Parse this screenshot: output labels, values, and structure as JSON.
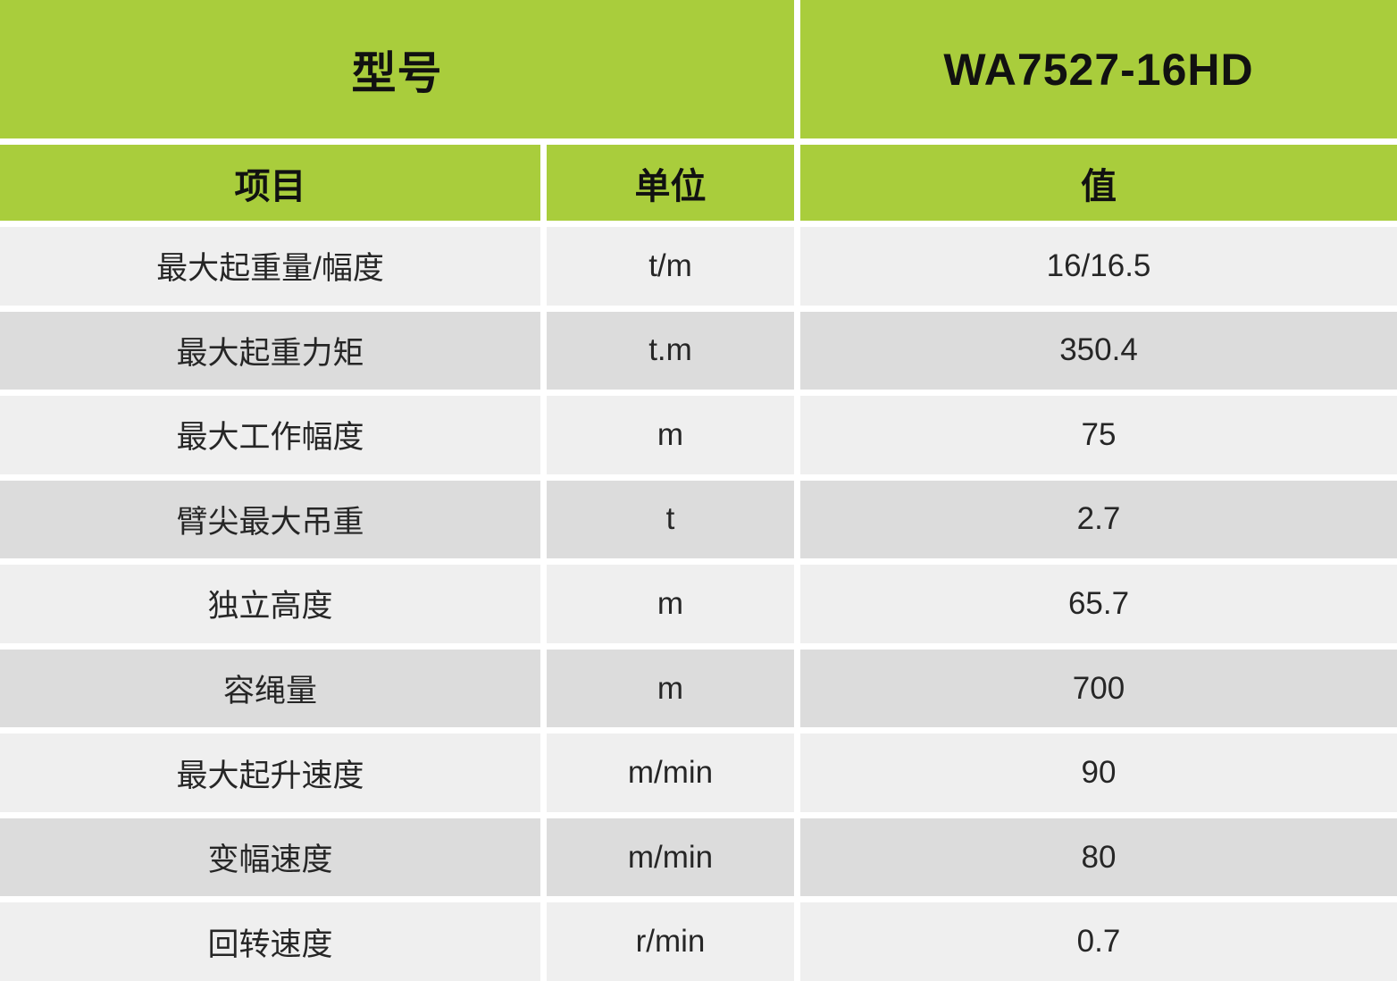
{
  "table": {
    "header": {
      "model_label": "型号",
      "model_value": "WA7527-16HD"
    },
    "columns": [
      {
        "key": "item",
        "label": "项目"
      },
      {
        "key": "unit",
        "label": "单位"
      },
      {
        "key": "value",
        "label": "值"
      }
    ],
    "rows": [
      {
        "item": "最大起重量/幅度",
        "unit": "t/m",
        "value": "16/16.5"
      },
      {
        "item": "最大起重力矩",
        "unit": "t.m",
        "value": "350.4"
      },
      {
        "item": "最大工作幅度",
        "unit": "m",
        "value": "75"
      },
      {
        "item": "臂尖最大吊重",
        "unit": "t",
        "value": "2.7"
      },
      {
        "item": "独立高度",
        "unit": "m",
        "value": "65.7"
      },
      {
        "item": "容绳量",
        "unit": "m",
        "value": "700"
      },
      {
        "item": "最大起升速度",
        "unit": "m/min",
        "value": "90"
      },
      {
        "item": "变幅速度",
        "unit": "m/min",
        "value": "80"
      },
      {
        "item": "回转速度",
        "unit": "r/min",
        "value": "0.7"
      }
    ],
    "colors": {
      "header_green": "#a9cd3c",
      "row_light": "#efefef",
      "row_dark": "#dcdcdc"
    }
  }
}
